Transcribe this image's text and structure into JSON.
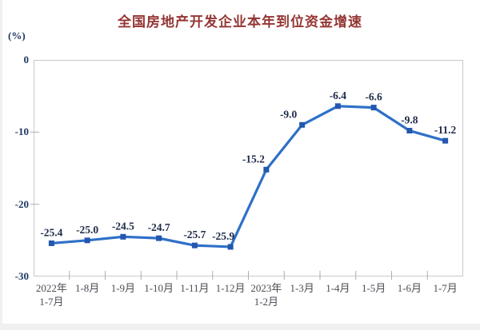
{
  "header": {
    "title": "全国房地产开发企业本年到位资金增速",
    "unit_label": "(%)"
  },
  "colors": {
    "title": "#943634",
    "axis_tick_text": "#1F3864",
    "data_label_text": "#1E2B4A",
    "x_label_text": "#4C4C55",
    "line": "#2E70C8",
    "marker": "#2457AE",
    "plot_border": "#C9C9C9",
    "tick_mark": "#ADADAD",
    "page_edge": "#F0F0F0"
  },
  "chart_data": {
    "type": "line",
    "title": "全国房地产开发企业本年到位资金增速",
    "ylabel": "(%)",
    "categories": [
      "2022年\n1-7月",
      "1-8月",
      "1-9月",
      "1-10月",
      "1-11月",
      "1-12月",
      "2023年\n1-2月",
      "1-3月",
      "1-4月",
      "1-5月",
      "1-6月",
      "1-7月"
    ],
    "values": [
      -25.4,
      -25.0,
      -24.5,
      -24.7,
      -25.7,
      -25.9,
      -15.2,
      -9.0,
      -6.4,
      -6.6,
      -9.8,
      -11.2
    ],
    "data_labels": [
      "-25.4",
      "-25.0",
      "-24.5",
      "-24.7",
      "-25.7",
      "-25.9",
      "-15.2",
      "-9.0",
      "-6.4",
      "-6.6",
      "-9.8",
      "-11.2"
    ],
    "ylim": [
      -30,
      0
    ],
    "yticks": [
      0,
      -10,
      -20,
      -30
    ],
    "grid": false,
    "legend": false,
    "marker": "square",
    "label_offsets": {
      "5": [
        -9,
        0
      ],
      "6": [
        -16,
        0
      ],
      "7": [
        -17,
        0
      ]
    }
  }
}
